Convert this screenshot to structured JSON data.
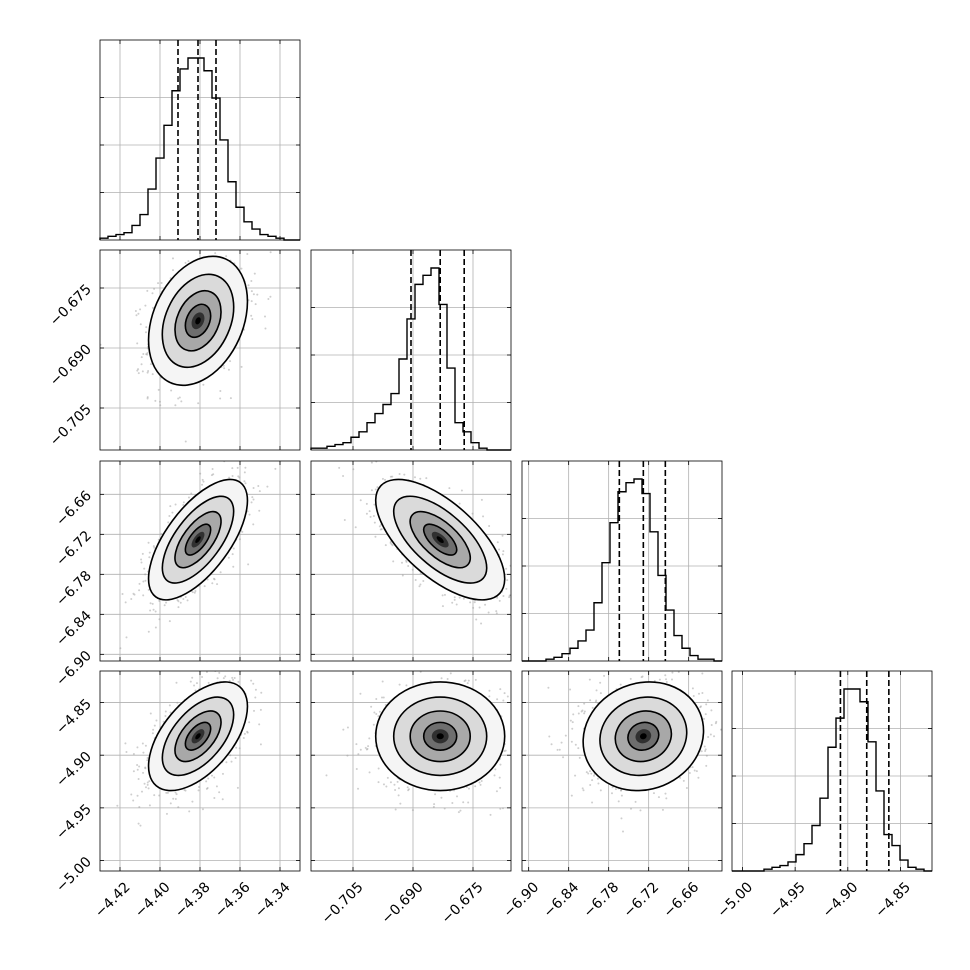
{
  "chart_data": {
    "type": "corner",
    "grid": true,
    "parameters": [
      {
        "ticks": [
          -4.42,
          -4.4,
          -4.38,
          -4.36,
          -4.34
        ],
        "tick_labels": [
          "−4.42",
          "−4.40",
          "−4.38",
          "−4.36",
          "−4.34"
        ],
        "range": [
          -4.43,
          -4.33
        ],
        "quantiles": [
          -4.391,
          -4.381,
          -4.372
        ]
      },
      {
        "ticks": [
          -0.705,
          -0.69,
          -0.675
        ],
        "tick_labels": [
          "−0.705",
          "−0.690",
          "−0.675"
        ],
        "range": [
          -0.7155,
          -0.6655
        ],
        "quantiles": [
          -0.6905,
          -0.6832,
          -0.6772
        ]
      },
      {
        "ticks": [
          -6.9,
          -6.84,
          -6.78,
          -6.72,
          -6.66
        ],
        "tick_labels": [
          "−6.90",
          "−6.84",
          "−6.78",
          "−6.72",
          "−6.66"
        ],
        "range": [
          -6.91,
          -6.61
        ],
        "quantiles": [
          -6.764,
          -6.728,
          -6.695
        ]
      },
      {
        "ticks": [
          -5.0,
          -4.95,
          -4.9,
          -4.85
        ],
        "tick_labels": [
          "−5.00",
          "−4.95",
          "−4.90",
          "−4.85"
        ],
        "range": [
          -5.01,
          -4.82
        ],
        "quantiles": [
          -4.907,
          -4.882,
          -4.861
        ]
      }
    ],
    "histograms": [
      [
        1,
        2,
        3,
        4,
        8,
        14,
        28,
        45,
        63,
        82,
        94,
        100,
        100,
        93,
        78,
        55,
        32,
        18,
        10,
        6,
        3,
        2,
        1,
        0,
        0
      ],
      [
        1,
        1,
        2,
        3,
        4,
        7,
        10,
        15,
        20,
        25,
        31,
        50,
        72,
        91,
        96,
        100,
        80,
        45,
        15,
        10,
        4,
        1,
        0,
        0,
        0
      ],
      [
        0,
        0,
        0,
        1,
        2,
        4,
        7,
        11,
        17,
        32,
        54,
        76,
        93,
        98,
        100,
        92,
        71,
        47,
        28,
        14,
        7,
        3,
        1,
        1,
        0
      ],
      [
        0,
        0,
        0,
        0,
        1,
        2,
        3,
        5,
        9,
        15,
        25,
        40,
        68,
        84,
        100,
        100,
        93,
        71,
        44,
        20,
        14,
        6,
        2,
        1,
        0
      ]
    ],
    "pairs": [
      {
        "x": 0,
        "y": 1,
        "center": [
          -4.381,
          -0.6832
        ],
        "x_spread": 0.0115,
        "y_spread": 0.0075,
        "correlation": 0.3
      },
      {
        "x": 0,
        "y": 2,
        "center": [
          -4.381,
          -6.728
        ],
        "x_spread": 0.0115,
        "y_spread": 0.042,
        "correlation": 0.65
      },
      {
        "x": 1,
        "y": 2,
        "center": [
          -0.6832,
          -6.728
        ],
        "x_spread": 0.0075,
        "y_spread": 0.042,
        "correlation": -0.65
      },
      {
        "x": 0,
        "y": 3,
        "center": [
          -4.381,
          -4.882
        ],
        "x_spread": 0.0115,
        "y_spread": 0.024,
        "correlation": 0.55
      },
      {
        "x": 1,
        "y": 3,
        "center": [
          -0.6832,
          -4.882
        ],
        "x_spread": 0.0075,
        "y_spread": 0.024,
        "correlation": 0.0
      },
      {
        "x": 2,
        "y": 3,
        "center": [
          -6.728,
          -4.882
        ],
        "x_spread": 0.042,
        "y_spread": 0.024,
        "correlation": 0.1
      }
    ]
  }
}
